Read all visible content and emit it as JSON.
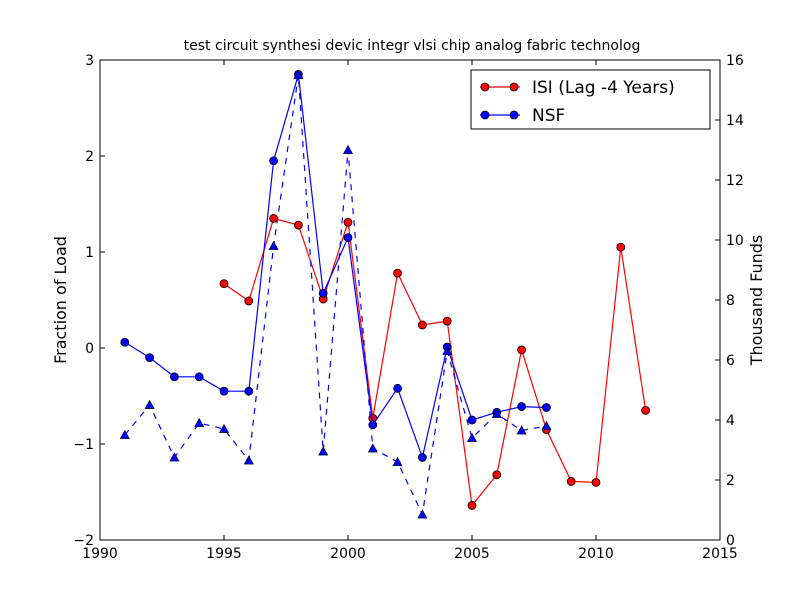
{
  "chart_data": {
    "type": "line",
    "title": "test circuit synthesi devic integr vlsi chip analog fabric technolog",
    "xlabel": "",
    "ylabel": "Fraction of Load",
    "y2label": "Thousand Funds",
    "xlim": [
      1990,
      2015
    ],
    "ylim": [
      -2,
      3
    ],
    "y2lim": [
      0,
      16
    ],
    "xticks": [
      "1990",
      "1995",
      "2000",
      "2005",
      "2010",
      "2015"
    ],
    "yticks": [
      "−2",
      "−1",
      "0",
      "1",
      "2",
      "3"
    ],
    "y2ticks": [
      "0",
      "2",
      "4",
      "6",
      "8",
      "10",
      "12",
      "14",
      "16"
    ],
    "grid": false,
    "legend_position": "top-right",
    "series": [
      {
        "name": "ISI (Lag -4 Years)",
        "axis": "left",
        "color": "#ff0000",
        "line_style": "solid",
        "marker": "circle",
        "x": [
          1995,
          1996,
          1997,
          1998,
          1999,
          2000,
          2001,
          2002,
          2003,
          2004,
          2005,
          2006,
          2007,
          2008,
          2009,
          2010,
          2011,
          2012
        ],
        "values": [
          0.67,
          0.49,
          1.35,
          1.28,
          0.51,
          1.31,
          -0.73,
          0.78,
          0.24,
          0.28,
          -1.64,
          -1.32,
          -0.02,
          -0.85,
          -1.39,
          -1.4,
          1.05,
          -0.65
        ]
      },
      {
        "name": "NSF",
        "axis": "left",
        "color": "#0000ff",
        "line_style": "solid",
        "marker": "circle",
        "x": [
          1991,
          1992,
          1993,
          1994,
          1995,
          1996,
          1997,
          1998,
          1999,
          2000,
          2001,
          2002,
          2003,
          2004,
          2005,
          2006,
          2007,
          2008
        ],
        "values": [
          0.06,
          -0.1,
          -0.3,
          -0.3,
          -0.45,
          -0.45,
          1.95,
          2.85,
          0.57,
          1.15,
          -0.8,
          -0.42,
          -1.14,
          0.01,
          -0.75,
          -0.67,
          -0.61,
          -0.62
        ]
      },
      {
        "axis": "right",
        "color": "#0000ff",
        "line_style": "dashed",
        "marker": "triangle",
        "x": [
          1991,
          1992,
          1993,
          1994,
          1995,
          1996,
          1997,
          1998,
          1999,
          2000,
          2001,
          2002,
          2003,
          2004,
          2005,
          2006,
          2007,
          2008
        ],
        "values": [
          3.5,
          4.5,
          2.75,
          3.9,
          3.7,
          2.65,
          9.8,
          15.5,
          2.95,
          13.0,
          3.05,
          2.6,
          0.85,
          6.3,
          3.4,
          4.2,
          3.65,
          3.8
        ]
      }
    ]
  }
}
